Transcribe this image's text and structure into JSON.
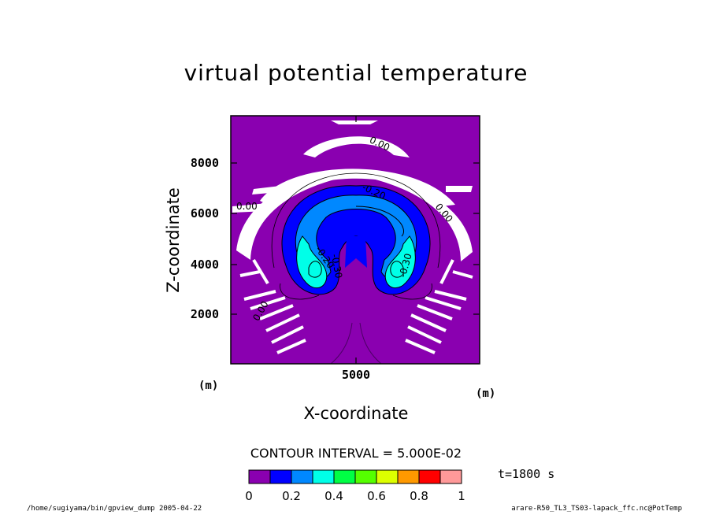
{
  "chart_data": {
    "type": "heatmap",
    "title": "virtual potential temperature",
    "xlabel": "X-coordinate",
    "ylabel": "Z-coordinate",
    "x_unit": "(m)",
    "y_unit": "(m)",
    "x_ticks": [
      5000
    ],
    "y_ticks": [
      2000,
      4000,
      6000,
      8000
    ],
    "xlim": [
      0,
      10000
    ],
    "ylim": [
      0,
      10000
    ],
    "contour_interval": "CONTOUR INTERVAL = 5.000E-02",
    "contour_labels": [
      "0.00",
      "0.00",
      "0.00",
      "-0.20",
      "-0.20",
      "-0.30",
      "-0.30",
      "0.00"
    ],
    "colorbar": {
      "ticks": [
        "0",
        "0.2",
        "0.4",
        "0.6",
        "0.8",
        "1"
      ],
      "colors": [
        "#8a00b0",
        "#0000ff",
        "#0088ff",
        "#00ffe8",
        "#00ff44",
        "#55ff00",
        "#ddff00",
        "#ff9900",
        "#ff0000",
        "#ff9999"
      ]
    },
    "time": "t=1800 s",
    "footer_left": "/home/sugiyama/bin/gpview_dump 2005-04-22",
    "footer_right": "arare-R50_TL3_TS03-lapack_ffc.nc@PotTemp"
  }
}
